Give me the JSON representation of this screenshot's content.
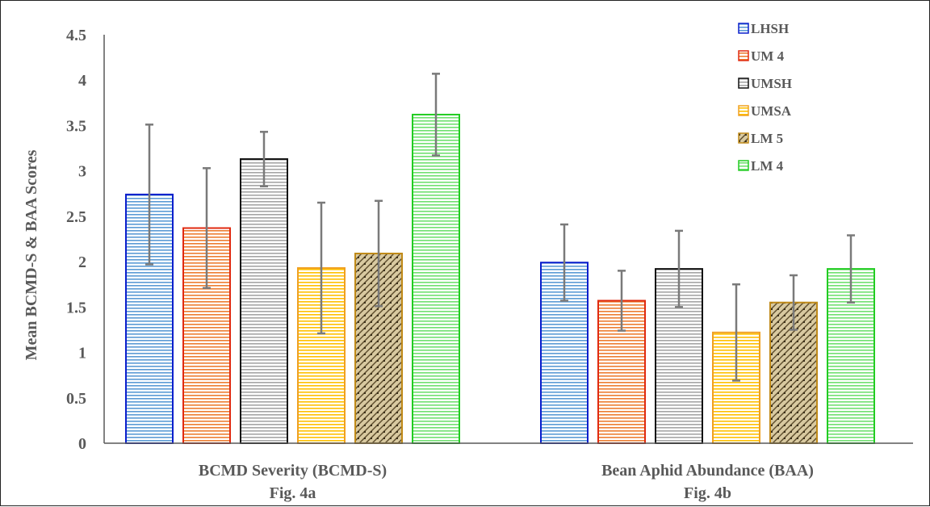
{
  "chart_data": {
    "type": "bar",
    "ylabel": "Mean BCMD-S & BAA Scores",
    "ylim": [
      0,
      4.5
    ],
    "yticks": [
      "0",
      "0.5",
      "1",
      "1.5",
      "2",
      "2.5",
      "3",
      "3.5",
      "4",
      "4.5"
    ],
    "categories": [
      {
        "line1": "BCMD Severity (BCMD-S)",
        "line2": "Fig. 4a"
      },
      {
        "line1": "Bean Aphid Abundance (BAA)",
        "line2": "Fig. 4b"
      }
    ],
    "series": [
      {
        "name": "LHSH",
        "color": "#5b9bd5",
        "edge": "#0a1ecc",
        "values": [
          2.74,
          1.99
        ],
        "errors": [
          0.77,
          0.42
        ]
      },
      {
        "name": "UM 4",
        "color": "#ed7d31",
        "edge": "#e02a10",
        "values": [
          2.37,
          1.57
        ],
        "errors": [
          0.66,
          0.33
        ]
      },
      {
        "name": "UMSH",
        "color": "#a5a5a5",
        "edge": "#111111",
        "values": [
          3.13,
          1.92
        ],
        "errors": [
          0.3,
          0.42
        ]
      },
      {
        "name": "UMSA",
        "color": "#ffc000",
        "edge": "#f0a020",
        "values": [
          1.93,
          1.22
        ],
        "errors": [
          0.72,
          0.53
        ]
      },
      {
        "name": "LM 5",
        "color": "#b09a6a",
        "edge": "#c08a18",
        "values": [
          2.09,
          1.55
        ],
        "errors": [
          0.58,
          0.3
        ]
      },
      {
        "name": "LM 4",
        "color": "#70e070",
        "edge": "#22cc22",
        "values": [
          3.62,
          1.92
        ],
        "errors": [
          0.45,
          0.37
        ]
      }
    ],
    "legend_position": "top-right",
    "grid": false
  }
}
